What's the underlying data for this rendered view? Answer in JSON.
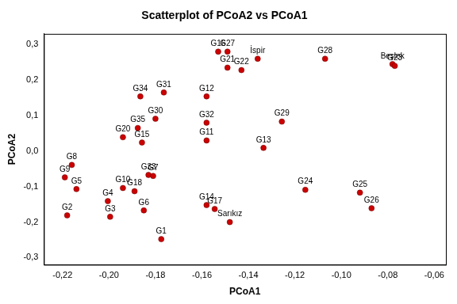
{
  "chart_data": {
    "type": "scatter",
    "title": "Scatterplot of PCoA2 vs PCoA1",
    "x_label": "PCoA1",
    "y_label": "PCoA2",
    "point_labels": [
      "G16",
      "G27",
      "G21",
      "G22",
      "İspir",
      "G28",
      "Beşlek",
      "G23",
      "G34",
      "G31",
      "G12",
      "G30",
      "G32",
      "G29",
      "G35",
      "G20",
      "G15",
      "G11",
      "G13",
      "G8",
      "G9",
      "G5",
      "G10",
      "G18",
      "G33",
      "G7",
      "G4",
      "G3",
      "G2",
      "G6",
      "G1",
      "G14",
      "G17",
      "Sarıkız",
      "G24",
      "G25",
      "G26"
    ],
    "x": [
      -0.153,
      -0.149,
      -0.149,
      -0.143,
      -0.136,
      -0.107,
      -0.078,
      -0.077,
      -0.1865,
      -0.1764,
      -0.158,
      -0.18,
      -0.158,
      -0.1256,
      -0.1876,
      -0.194,
      -0.1858,
      -0.158,
      -0.1335,
      -0.216,
      -0.219,
      -0.214,
      -0.194,
      -0.189,
      -0.183,
      -0.181,
      -0.2005,
      -0.1995,
      -0.218,
      -0.185,
      -0.1775,
      -0.158,
      -0.1545,
      -0.148,
      -0.1155,
      -0.092,
      -0.087
    ],
    "values": [
      0.28,
      0.28,
      0.235,
      0.228,
      0.26,
      0.26,
      0.245,
      0.24,
      0.154,
      0.165,
      0.154,
      0.091,
      0.08,
      0.083,
      0.065,
      0.039,
      0.024,
      0.03,
      0.009,
      -0.039,
      -0.074,
      -0.107,
      -0.104,
      -0.113,
      -0.067,
      -0.07,
      -0.141,
      -0.185,
      -0.181,
      -0.167,
      -0.248,
      -0.152,
      -0.163,
      -0.2,
      -0.109,
      -0.117,
      -0.161
    ],
    "color": "#cc0000",
    "marker": "circle",
    "grid": false,
    "xlim": [
      -0.228,
      -0.055
    ],
    "ylim": [
      -0.32,
      0.33
    ],
    "xticks": [
      {
        "value": -0.22,
        "label": "-0,22"
      },
      {
        "value": -0.2,
        "label": "-0,20"
      },
      {
        "value": -0.18,
        "label": "-0,18"
      },
      {
        "value": -0.16,
        "label": "-0,16"
      },
      {
        "value": -0.14,
        "label": "-0,14"
      },
      {
        "value": -0.12,
        "label": "-0,12"
      },
      {
        "value": -0.1,
        "label": "-0,10"
      },
      {
        "value": -0.08,
        "label": "-0,08"
      },
      {
        "value": -0.06,
        "label": "-0,06"
      }
    ],
    "yticks": [
      {
        "value": -0.3,
        "label": "-0,3"
      },
      {
        "value": -0.2,
        "label": "-0,2"
      },
      {
        "value": -0.1,
        "label": "-0,1"
      },
      {
        "value": 0,
        "label": "0,0"
      },
      {
        "value": 0.1,
        "label": "0,1"
      },
      {
        "value": 0.2,
        "label": "0,2"
      },
      {
        "value": 0.3,
        "label": "0,3"
      }
    ]
  }
}
